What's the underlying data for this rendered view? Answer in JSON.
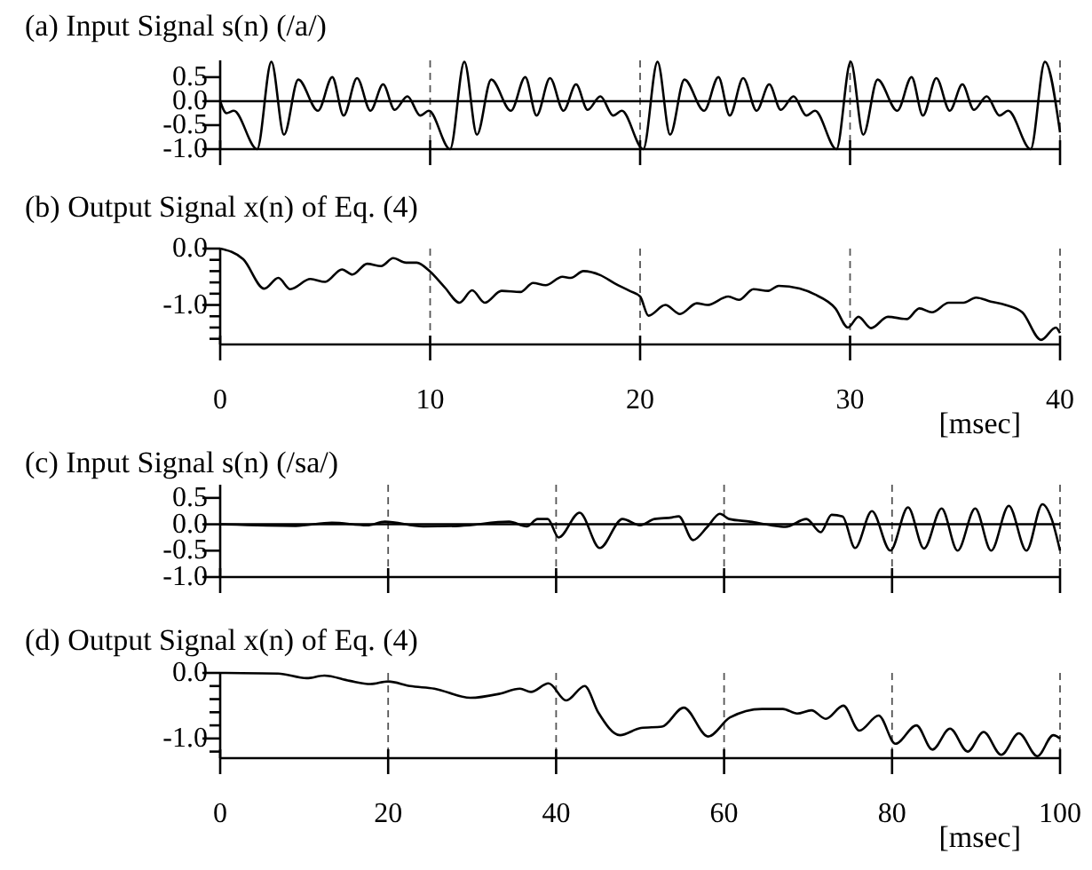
{
  "chart_data": [
    {
      "type": "line",
      "title": "(a) Input Signal s(n) (/a/)",
      "xlim": [
        0,
        40
      ],
      "xticks": [
        0,
        10,
        20,
        30,
        40
      ],
      "ylim": [
        -1.0,
        0.85
      ],
      "yticks": [
        {
          "value": 0.5,
          "label": "0.5"
        },
        {
          "value": 0,
          "label": "0.0"
        },
        {
          "value": -0.5,
          "label": "-0.5"
        },
        {
          "value": -1,
          "label": "-1.0"
        }
      ],
      "grid": "x",
      "tick_labels": "y",
      "ref_lines": [
        {
          "axis": "y",
          "value": 0
        }
      ],
      "series": [
        {
          "color": "#000000",
          "x": [
            0,
            0.3,
            0.65,
            1.76,
            2.44,
            3.04,
            3.72,
            4.66,
            5.34,
            5.88,
            6.52,
            7.16,
            7.76,
            8.31,
            8.92,
            9.53,
            9.94,
            10.95,
            11.63,
            12.23,
            12.91,
            13.85,
            14.53,
            15.07,
            15.71,
            16.35,
            16.95,
            17.5,
            18.11,
            18.72,
            19.13,
            20.15,
            20.83,
            21.43,
            22.11,
            23.05,
            23.73,
            24.27,
            24.91,
            25.55,
            26.15,
            26.7,
            27.31,
            27.92,
            28.33,
            29.35,
            30.03,
            30.63,
            31.31,
            32.25,
            32.93,
            33.47,
            34.11,
            34.75,
            35.35,
            35.9,
            36.51,
            37.12,
            37.53,
            38.6,
            39.28,
            40
          ],
          "values": [
            0,
            -0.25,
            -0.2,
            -1,
            0.82,
            -0.7,
            0.45,
            -0.2,
            0.5,
            -0.3,
            0.48,
            -0.2,
            0.35,
            -0.18,
            0.1,
            -0.3,
            -0.2,
            -1,
            0.82,
            -0.7,
            0.45,
            -0.2,
            0.5,
            -0.3,
            0.48,
            -0.2,
            0.35,
            -0.18,
            0.1,
            -0.3,
            -0.2,
            -1,
            0.82,
            -0.7,
            0.45,
            -0.2,
            0.5,
            -0.3,
            0.48,
            -0.2,
            0.35,
            -0.18,
            0.1,
            -0.3,
            -0.2,
            -1,
            0.82,
            -0.7,
            0.45,
            -0.2,
            0.5,
            -0.3,
            0.48,
            -0.2,
            0.35,
            -0.18,
            0.1,
            -0.3,
            -0.2,
            -1,
            0.82,
            -0.65
          ]
        }
      ]
    },
    {
      "type": "line",
      "title": "(b) Output Signal x(n) of Eq. (4)",
      "xlabel": "[msec]",
      "xlim": [
        0,
        40
      ],
      "xticks": [
        0,
        10,
        20,
        30,
        40
      ],
      "ylim": [
        -1.7,
        0
      ],
      "yticks": [
        {
          "value": 0,
          "label": "0.0"
        },
        {
          "value": -0.2,
          "label": null
        },
        {
          "value": -0.4,
          "label": null
        },
        {
          "value": -0.6,
          "label": null
        },
        {
          "value": -0.8,
          "label": null
        },
        {
          "value": -1,
          "label": "-1.0"
        },
        {
          "value": -1.2,
          "label": null
        },
        {
          "value": -1.4,
          "label": null
        },
        {
          "value": -1.6,
          "label": null
        }
      ],
      "grid": "x",
      "series": [
        {
          "color": "#000000",
          "x": [
            0,
            1.1,
            2.1,
            2.77,
            3.34,
            4.3,
            5.0,
            5.8,
            6.3,
            7.0,
            7.67,
            8.24,
            8.85,
            9.36,
            10.0,
            10.7,
            11.4,
            12.0,
            12.6,
            13.4,
            14.3,
            14.9,
            15.5,
            16.3,
            16.7,
            17.3,
            18.1,
            18.8,
            19.5,
            20.0,
            20.4,
            21.2,
            21.9,
            22.7,
            23.2,
            24.2,
            24.7,
            25.4,
            26.1,
            26.6,
            27.6,
            28.3,
            29.3,
            29.9,
            30.4,
            31.0,
            31.8,
            32.7,
            33.3,
            33.9,
            34.7,
            35.4,
            36.0,
            36.7,
            37.4,
            38.2,
            39.1,
            39.8,
            40
          ],
          "values": [
            0,
            -0.19,
            -0.71,
            -0.52,
            -0.72,
            -0.54,
            -0.59,
            -0.37,
            -0.46,
            -0.27,
            -0.31,
            -0.17,
            -0.25,
            -0.25,
            -0.41,
            -0.69,
            -0.96,
            -0.74,
            -0.96,
            -0.75,
            -0.77,
            -0.61,
            -0.65,
            -0.5,
            -0.52,
            -0.4,
            -0.47,
            -0.62,
            -0.75,
            -0.85,
            -1.19,
            -1.0,
            -1.16,
            -0.97,
            -1.0,
            -0.85,
            -0.91,
            -0.72,
            -0.75,
            -0.66,
            -0.71,
            -0.81,
            -1.06,
            -1.4,
            -1.21,
            -1.41,
            -1.21,
            -1.25,
            -1.06,
            -1.13,
            -0.96,
            -0.96,
            -0.87,
            -0.94,
            -1.0,
            -1.13,
            -1.62,
            -1.4,
            -1.5
          ]
        }
      ]
    },
    {
      "type": "line",
      "title": "(c) Input Signal s(n) (/sa/)",
      "xlim": [
        0,
        100
      ],
      "xticks": [
        0,
        20,
        40,
        60,
        80,
        100
      ],
      "ylim": [
        -1.0,
        0.75
      ],
      "yticks": [
        {
          "value": 0.5,
          "label": "0.5"
        },
        {
          "value": 0,
          "label": "0.0"
        },
        {
          "value": -0.5,
          "label": "-0.5"
        },
        {
          "value": -1,
          "label": "-1.0"
        }
      ],
      "grid": "x",
      "tick_labels": "y",
      "ref_lines": [
        {
          "axis": "y",
          "value": 0
        }
      ],
      "series": [
        {
          "color": "#000000",
          "x": [
            0,
            9,
            13.3,
            17.5,
            19.6,
            24.2,
            28.5,
            34.4,
            36.5,
            37.8,
            39,
            40.3,
            42.8,
            45.2,
            47.9,
            50,
            51.7,
            53.8,
            54.6,
            56.3,
            58,
            59.5,
            60.6,
            63.1,
            65.6,
            67.3,
            69.8,
            71.5,
            72.8,
            74.1,
            75.6,
            77.6,
            79.8,
            81.9,
            83.8,
            85.9,
            87.8,
            89.9,
            91.8,
            93.9,
            96,
            97.9,
            99,
            100
          ],
          "values": [
            0,
            -0.03,
            0.03,
            -0.02,
            0.05,
            -0.04,
            -0.03,
            0.05,
            -0.04,
            0.1,
            0.1,
            -0.25,
            0.22,
            -0.45,
            0.1,
            -0.02,
            0.1,
            0.13,
            0.15,
            -0.3,
            -0.05,
            0.2,
            0.1,
            0.05,
            -0.02,
            -0.05,
            0.1,
            -0.15,
            0.18,
            0.15,
            -0.45,
            0.25,
            -0.5,
            0.32,
            -0.46,
            0.3,
            -0.5,
            0.3,
            -0.5,
            0.35,
            -0.5,
            0.38,
            0.1,
            -0.5
          ]
        }
      ]
    },
    {
      "type": "line",
      "title": "(d) Output Signal x(n) of Eq. (4)",
      "xlabel": "[msec]",
      "xlim": [
        0,
        100
      ],
      "xticks": [
        0,
        20,
        40,
        60,
        80,
        100
      ],
      "ylim": [
        -1.3,
        0
      ],
      "yticks": [
        {
          "value": 0,
          "label": "0.0"
        },
        {
          "value": -0.2,
          "label": null
        },
        {
          "value": -0.4,
          "label": null
        },
        {
          "value": -0.6,
          "label": null
        },
        {
          "value": -0.8,
          "label": null
        },
        {
          "value": -1,
          "label": "-1.0"
        },
        {
          "value": -1.2,
          "label": null
        }
      ],
      "grid": "x",
      "series": [
        {
          "color": "#000000",
          "x": [
            0,
            6.9,
            10.3,
            12.4,
            15.4,
            17.9,
            20,
            22.6,
            25.5,
            29.8,
            33.2,
            35.7,
            37,
            39.1,
            41.2,
            43.4,
            45,
            47.6,
            50.1,
            52.6,
            55.2,
            58.1,
            60.7,
            64.5,
            67,
            68.7,
            70.4,
            72.1,
            74.2,
            76.1,
            78.4,
            80.4,
            82.9,
            84.8,
            86.9,
            89,
            90.9,
            93,
            95.1,
            97.3,
            99.2,
            100
          ],
          "values": [
            0,
            -0.01,
            -0.08,
            -0.04,
            -0.12,
            -0.17,
            -0.13,
            -0.2,
            -0.24,
            -0.38,
            -0.32,
            -0.24,
            -0.29,
            -0.16,
            -0.42,
            -0.2,
            -0.6,
            -0.95,
            -0.84,
            -0.82,
            -0.53,
            -0.97,
            -0.68,
            -0.55,
            -0.55,
            -0.62,
            -0.57,
            -0.7,
            -0.5,
            -0.88,
            -0.65,
            -1.08,
            -0.8,
            -1.17,
            -0.85,
            -1.2,
            -0.9,
            -1.25,
            -0.92,
            -1.27,
            -0.95,
            -1.0
          ]
        }
      ]
    }
  ]
}
